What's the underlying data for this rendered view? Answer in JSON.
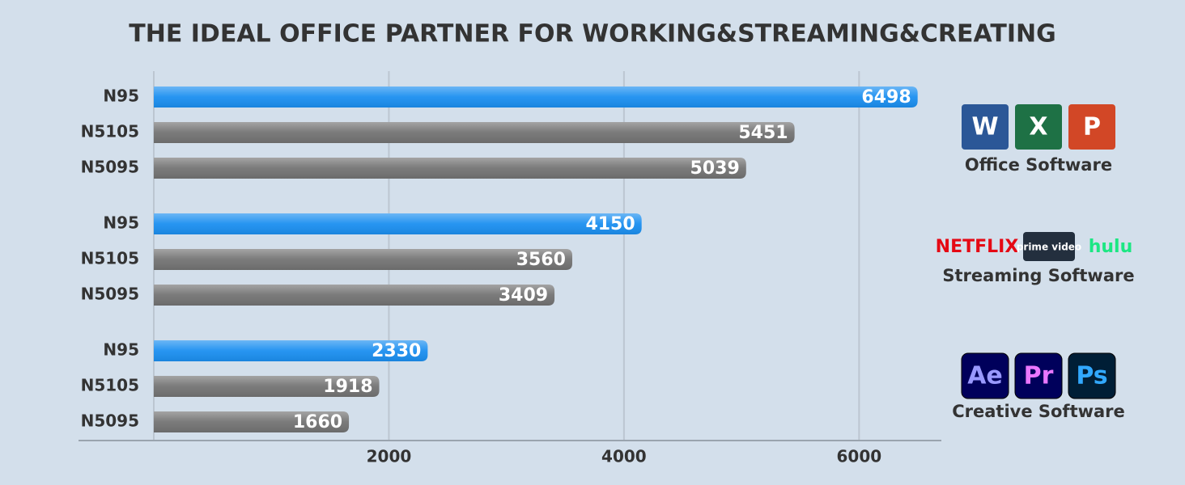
{
  "chart_data": {
    "type": "bar",
    "orientation": "horizontal",
    "title": "THE IDEAL OFFICE PARTNER FOR WORKING&STREAMING&CREATING",
    "categories": [
      "N95",
      "N5105",
      "N5095",
      "N95",
      "N5105",
      "N5095",
      "N95",
      "N5105",
      "N5095"
    ],
    "values": [
      6498,
      5451,
      5039,
      4150,
      3560,
      3409,
      2330,
      1918,
      1660
    ],
    "colors": [
      "#1b8ff0",
      "#737373",
      "#737373",
      "#1b8ff0",
      "#737373",
      "#737373",
      "#1b8ff0",
      "#737373",
      "#737373"
    ],
    "groups": [
      {
        "label": "Office Software",
        "icons": [
          "W",
          "X",
          "P"
        ]
      },
      {
        "label": "Streaming Software",
        "icons": [
          "NETFLIX",
          "prime video",
          "hulu"
        ]
      },
      {
        "label": "Creative Software",
        "icons": [
          "Ae",
          "Pr",
          "Ps"
        ]
      }
    ],
    "xlim": [
      0,
      6700
    ],
    "xticks": [
      2000,
      4000,
      6000
    ],
    "grid": true
  }
}
